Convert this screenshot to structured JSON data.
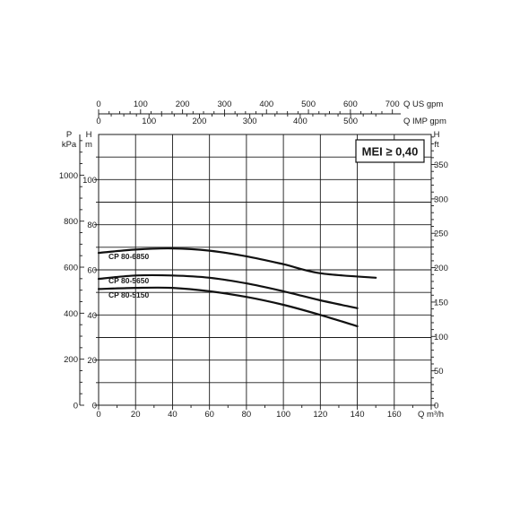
{
  "chart_data": {
    "type": "line",
    "badge": "MEI ≥ 0,40",
    "x_axis": {
      "label": "Q m³/h",
      "ticks": [
        "0",
        "20",
        "40",
        "60",
        "80",
        "100",
        "120",
        "140",
        "160"
      ],
      "range": [
        0,
        180
      ]
    },
    "top_axis_us": {
      "label": "Q US gpm",
      "ticks": [
        "0",
        "100",
        "200",
        "300",
        "400",
        "500",
        "600",
        "700"
      ],
      "values": [
        0,
        100,
        200,
        300,
        400,
        500,
        600,
        700
      ]
    },
    "top_axis_imp": {
      "label": "Q IMP gpm",
      "ticks": [
        "0",
        "100",
        "200",
        "300",
        "400",
        "500"
      ],
      "values": [
        0,
        100,
        200,
        300,
        400,
        500
      ]
    },
    "y_left_m": {
      "unit_top": "H",
      "unit_bottom": "m",
      "ticks": [
        "0",
        "20",
        "40",
        "60",
        "80",
        "100"
      ],
      "values": [
        0,
        20,
        40,
        60,
        80,
        100
      ],
      "range": [
        0,
        120
      ]
    },
    "y_left_kpa": {
      "unit_top": "P",
      "unit_bottom": "kPa",
      "ticks": [
        "0",
        "200",
        "400",
        "600",
        "800",
        "1000"
      ],
      "values": [
        0,
        200,
        400,
        600,
        800,
        1000
      ]
    },
    "y_right_ft": {
      "unit_top": "H",
      "unit_bottom": "ft",
      "ticks": [
        "0",
        "50",
        "100",
        "150",
        "200",
        "250",
        "300",
        "350"
      ],
      "values": [
        0,
        50,
        100,
        150,
        200,
        250,
        300,
        350
      ]
    },
    "grid": true,
    "series": [
      {
        "name": "CP 80-6850",
        "points": [
          [
            0,
            67.5
          ],
          [
            20,
            69
          ],
          [
            40,
            69.5
          ],
          [
            60,
            68.5
          ],
          [
            80,
            66
          ],
          [
            100,
            62.5
          ],
          [
            120,
            58.5
          ],
          [
            150,
            56.5
          ]
        ]
      },
      {
        "name": "CP 80-5650",
        "points": [
          [
            0,
            56
          ],
          [
            20,
            57.5
          ],
          [
            40,
            57.5
          ],
          [
            60,
            56.5
          ],
          [
            80,
            54
          ],
          [
            100,
            50.5
          ],
          [
            120,
            46.5
          ],
          [
            140,
            43
          ]
        ]
      },
      {
        "name": "CP 80-5150",
        "points": [
          [
            0,
            51.5
          ],
          [
            20,
            52
          ],
          [
            40,
            52
          ],
          [
            60,
            50.5
          ],
          [
            80,
            48
          ],
          [
            100,
            44.5
          ],
          [
            120,
            40
          ],
          [
            140,
            35
          ]
        ]
      }
    ]
  }
}
